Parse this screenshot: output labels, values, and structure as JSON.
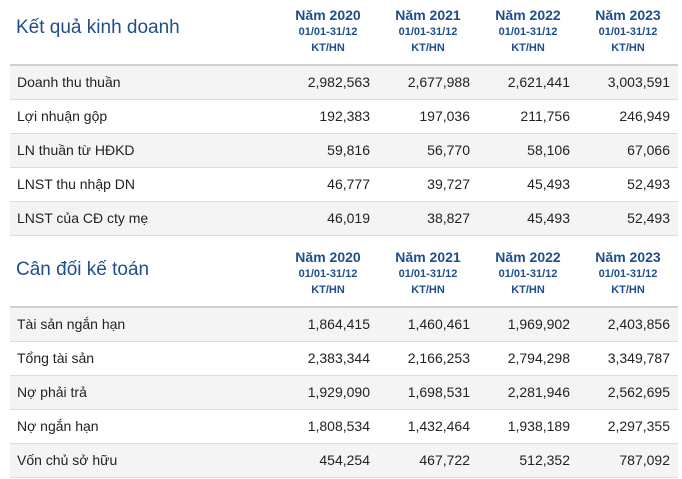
{
  "income": {
    "title": "Kết quả kinh doanh",
    "columns": [
      {
        "year": "Năm 2020",
        "period": "01/01-31/12",
        "unit": "KT/HN"
      },
      {
        "year": "Năm 2021",
        "period": "01/01-31/12",
        "unit": "KT/HN"
      },
      {
        "year": "Năm 2022",
        "period": "01/01-31/12",
        "unit": "KT/HN"
      },
      {
        "year": "Năm 2023",
        "period": "01/01-31/12",
        "unit": "KT/HN"
      }
    ],
    "rows": [
      {
        "label": "Doanh thu thuần",
        "values": [
          "2,982,563",
          "2,677,988",
          "2,621,441",
          "3,003,591"
        ]
      },
      {
        "label": "Lợi nhuận gộp",
        "values": [
          "192,383",
          "197,036",
          "211,756",
          "246,949"
        ]
      },
      {
        "label": "LN thuần từ HĐKD",
        "values": [
          "59,816",
          "56,770",
          "58,106",
          "67,066"
        ]
      },
      {
        "label": "LNST thu nhập DN",
        "values": [
          "46,777",
          "39,727",
          "45,493",
          "52,493"
        ]
      },
      {
        "label": "LNST của CĐ cty mẹ",
        "values": [
          "46,019",
          "38,827",
          "45,493",
          "52,493"
        ]
      }
    ]
  },
  "balance": {
    "title": "Cân đối kế toán",
    "columns": [
      {
        "year": "Năm 2020",
        "period": "01/01-31/12",
        "unit": "KT/HN"
      },
      {
        "year": "Năm 2021",
        "period": "01/01-31/12",
        "unit": "KT/HN"
      },
      {
        "year": "Năm 2022",
        "period": "01/01-31/12",
        "unit": "KT/HN"
      },
      {
        "year": "Năm 2023",
        "period": "01/01-31/12",
        "unit": "KT/HN"
      }
    ],
    "rows": [
      {
        "label": "Tài sản ngắn hạn",
        "values": [
          "1,864,415",
          "1,460,461",
          "1,969,902",
          "2,403,856"
        ]
      },
      {
        "label": "Tổng tài sản",
        "values": [
          "2,383,344",
          "2,166,253",
          "2,794,298",
          "3,349,787"
        ]
      },
      {
        "label": "Nợ phải trả",
        "values": [
          "1,929,090",
          "1,698,531",
          "2,281,946",
          "2,562,695"
        ]
      },
      {
        "label": "Nợ ngắn hạn",
        "values": [
          "1,808,534",
          "1,432,464",
          "1,938,189",
          "2,297,355"
        ]
      },
      {
        "label": "Vốn chủ sở hữu",
        "values": [
          "454,254",
          "467,722",
          "512,352",
          "787,092"
        ]
      }
    ]
  }
}
